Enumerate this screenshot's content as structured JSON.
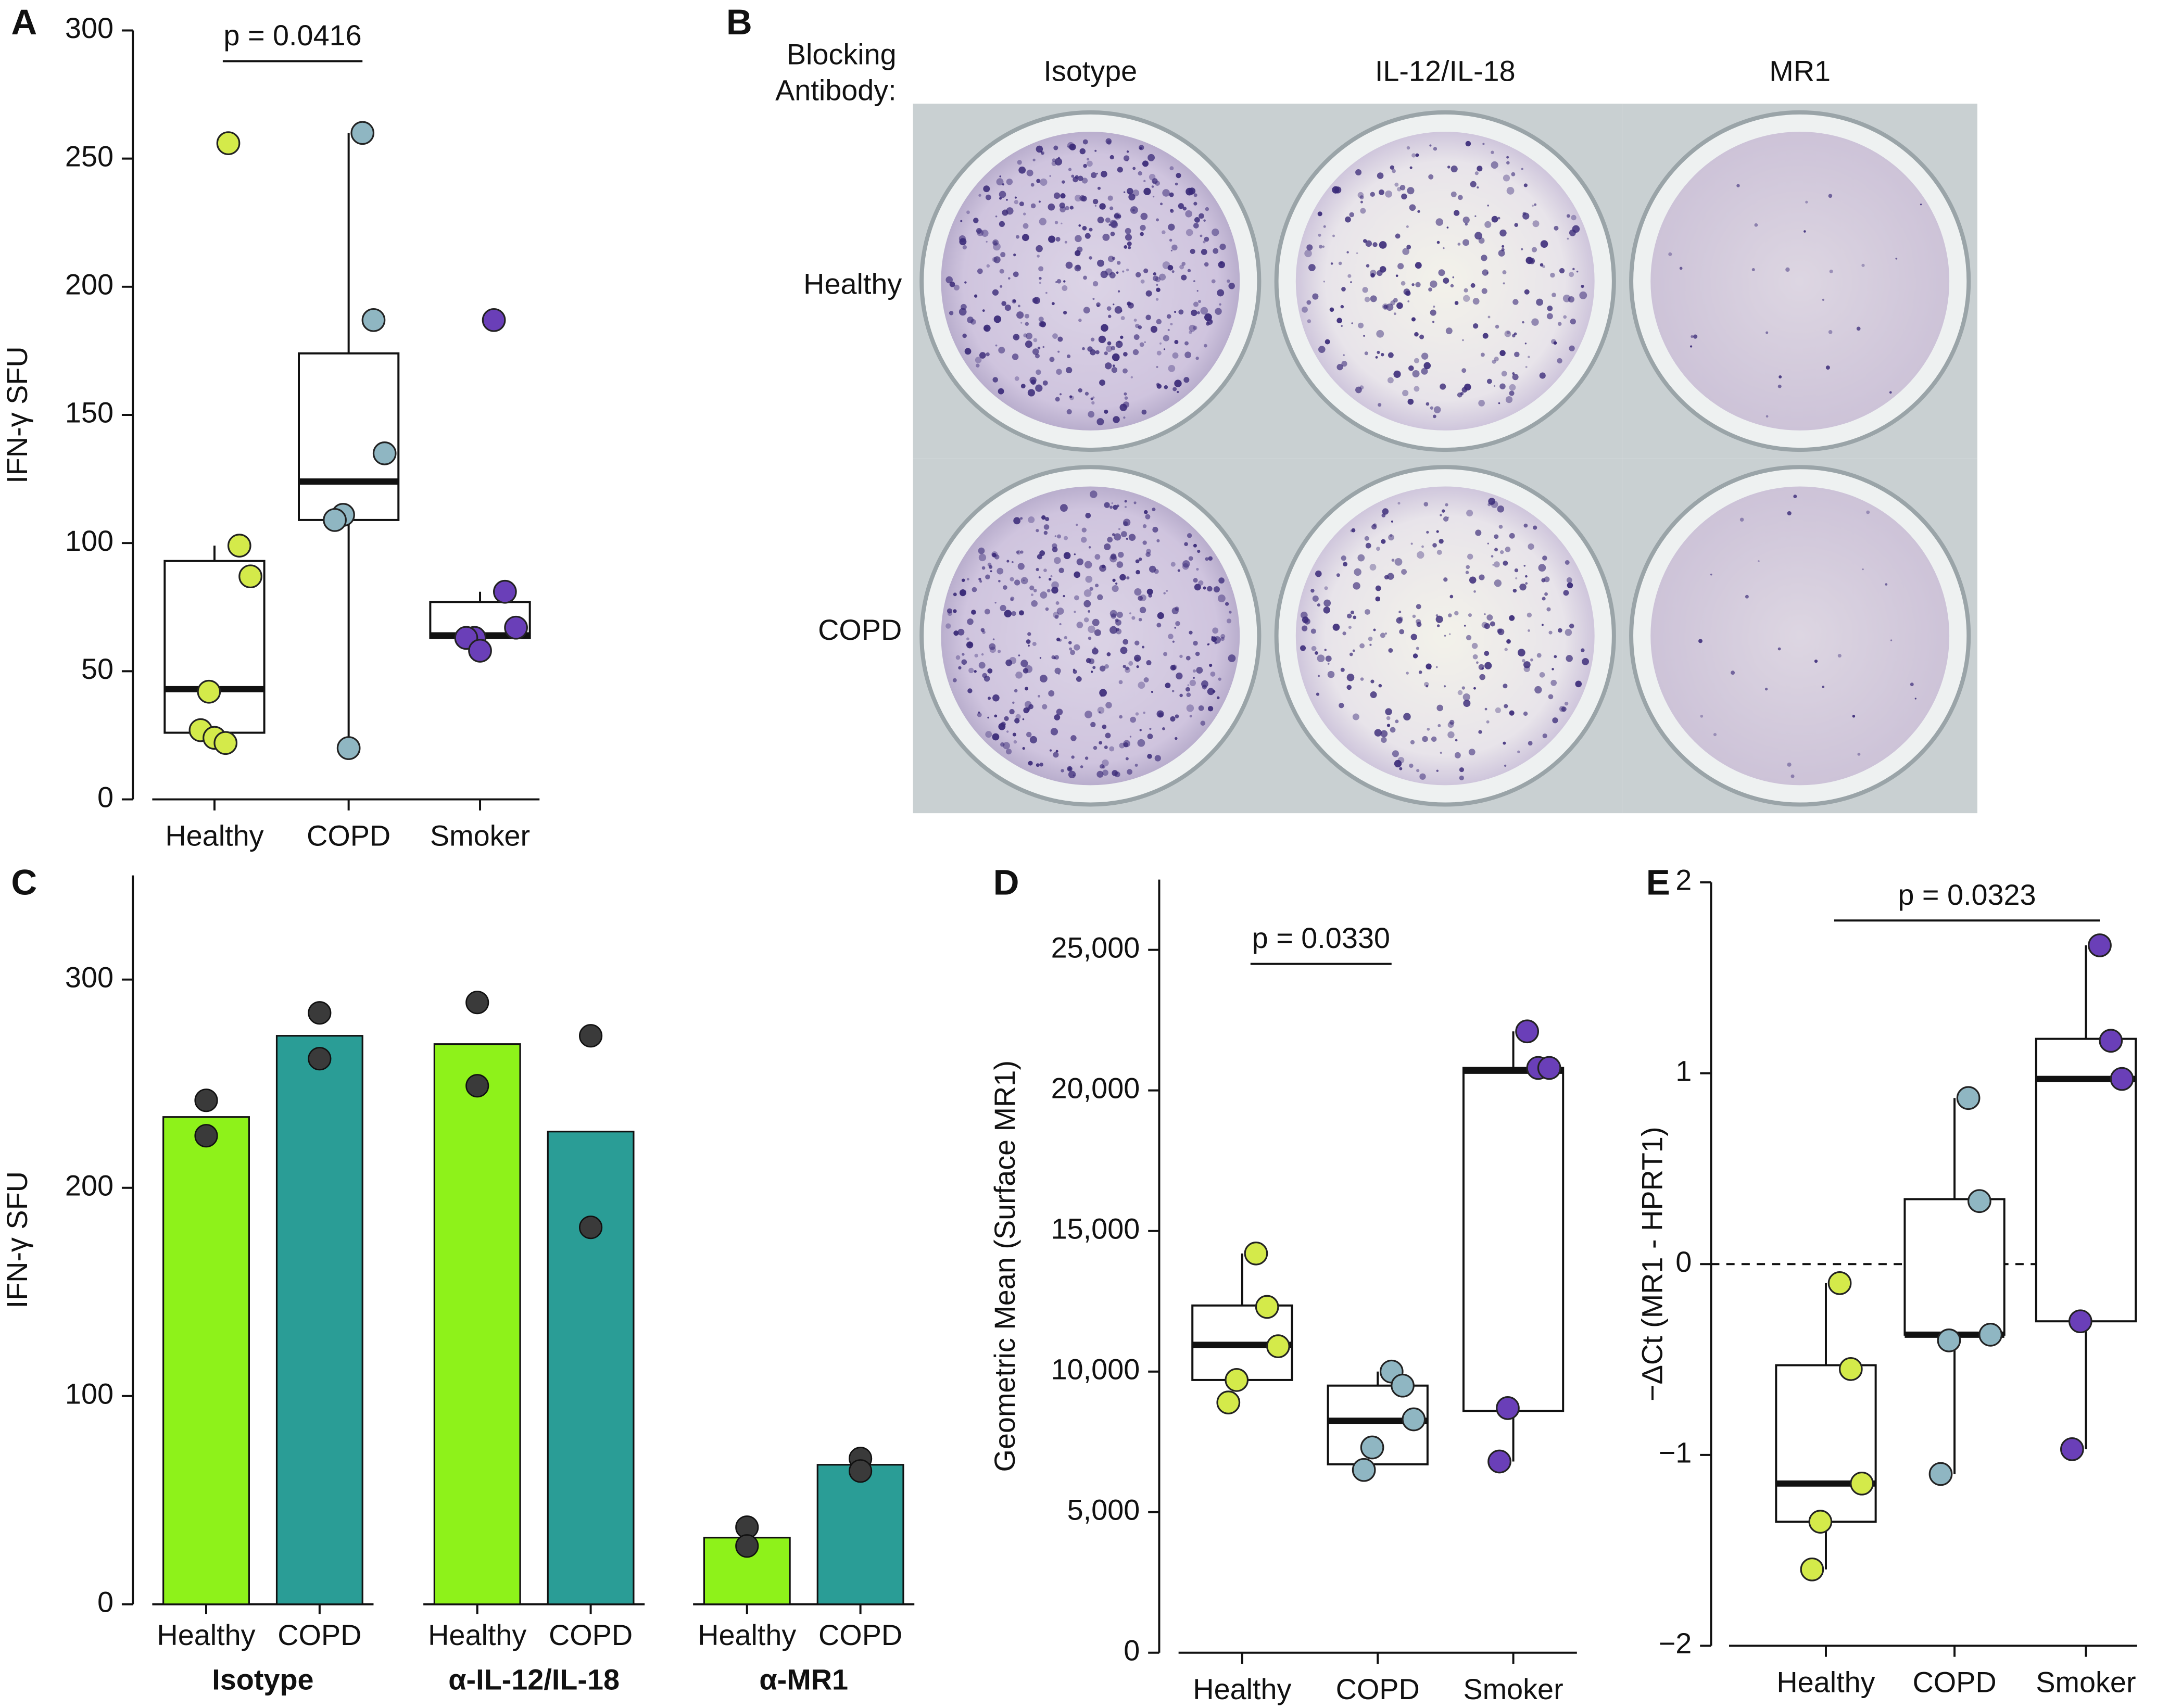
{
  "chart_data": [
    {
      "type": "box",
      "label": "A",
      "ylabel": "IFN-γ SFU",
      "categories": [
        "Healthy",
        "COPD",
        "Smoker"
      ],
      "colors": [
        "#d4ea4a",
        "#8fb6c2",
        "#6a3fb8"
      ],
      "ylim": [
        0,
        300
      ],
      "yticks": [
        0,
        50,
        100,
        150,
        200,
        250,
        300
      ],
      "boxes": [
        {
          "whislo": 26,
          "q1": 26,
          "med": 43,
          "q3": 93,
          "whishi": 99
        },
        {
          "whislo": 20,
          "q1": 109,
          "med": 124,
          "q3": 174,
          "whishi": 260
        },
        {
          "whislo": 63,
          "q1": 63,
          "med": 64,
          "q3": 77,
          "whishi": 81
        }
      ],
      "points": [
        [
          256,
          99,
          87,
          42,
          27,
          24,
          22
        ],
        [
          260,
          187,
          135,
          111,
          109,
          20
        ],
        [
          187,
          81,
          67,
          63,
          63,
          58
        ]
      ],
      "annotations": [
        {
          "text": "p = 0.0416",
          "y": 288,
          "between": [
            "Healthy",
            "COPD"
          ]
        }
      ]
    },
    {
      "type": "bar",
      "label": "C",
      "ylabel": "IFN-γ SFU",
      "categories": [
        "Isotype",
        "α-IL-12/IL-18",
        "α-MR1"
      ],
      "series": [
        {
          "name": "Healthy",
          "color": "#8ef21a",
          "values": [
            234,
            269,
            32
          ],
          "points": [
            [
              242,
              225
            ],
            [
              289,
              249
            ],
            [
              37,
              28
            ]
          ]
        },
        {
          "name": "COPD",
          "color": "#2a9d96",
          "values": [
            273,
            227,
            67
          ],
          "points": [
            [
              284,
              262
            ],
            [
              273,
              181
            ],
            [
              70,
              64
            ]
          ]
        }
      ],
      "ylim": [
        0,
        350
      ],
      "yticks": [
        0,
        100,
        200,
        300
      ]
    },
    {
      "type": "box",
      "label": "D",
      "ylabel": "Geometric Mean (Surface MR1)",
      "categories": [
        "Healthy",
        "COPD",
        "Smoker"
      ],
      "colors": [
        "#d4ea4a",
        "#8fb6c2",
        "#6a3fb8"
      ],
      "ylim": [
        0,
        27500
      ],
      "yticks": [
        0,
        {
          "value": 5000,
          "label": "5,000"
        },
        {
          "value": 10000,
          "label": "10,000"
        },
        {
          "value": 15000,
          "label": "15,000"
        },
        {
          "value": 20000,
          "label": "20,000"
        },
        {
          "value": 25000,
          "label": "25,000"
        }
      ],
      "boxes": [
        {
          "whislo": 9700,
          "q1": 9700,
          "med": 10950,
          "q3": 12350,
          "whishi": 14200
        },
        {
          "whislo": 6700,
          "q1": 6700,
          "med": 8250,
          "q3": 9500,
          "whishi": 10000
        },
        {
          "whislo": 6800,
          "q1": 8600,
          "med": 20700,
          "q3": 20800,
          "whishi": 22100
        }
      ],
      "points": [
        [
          14200,
          12300,
          10900,
          9700,
          8900
        ],
        [
          10000,
          9500,
          8300,
          7300,
          6500
        ],
        [
          22100,
          20800,
          20800,
          8700,
          6800
        ]
      ],
      "annotations": [
        {
          "text": "p = 0.0330",
          "y": 24500,
          "between": [
            "Healthy",
            "COPD"
          ]
        }
      ]
    },
    {
      "type": "box",
      "label": "E",
      "ylabel": "−ΔCt (MR1 - HPRT1)",
      "categories": [
        "Healthy",
        "COPD",
        "Smoker"
      ],
      "colors": [
        "#d4ea4a",
        "#8fb6c2",
        "#6a3fb8"
      ],
      "ylim": [
        -2,
        2
      ],
      "yticks": [
        {
          "value": -2,
          "label": "−2"
        },
        {
          "value": -1,
          "label": "−1"
        },
        0,
        1,
        2
      ],
      "hline": 0,
      "boxes": [
        {
          "whislo": -1.6,
          "q1": -1.35,
          "med": -1.15,
          "q3": -0.53,
          "whishi": -0.1
        },
        {
          "whislo": -1.1,
          "q1": -0.37,
          "med": -0.37,
          "q3": 0.34,
          "whishi": 0.87
        },
        {
          "whislo": -0.97,
          "q1": -0.3,
          "med": 0.97,
          "q3": 1.18,
          "whishi": 1.67
        }
      ],
      "points": [
        [
          -0.1,
          -0.55,
          -1.15,
          -1.35,
          -1.6
        ],
        [
          0.87,
          0.33,
          -0.37,
          -0.4,
          -1.1
        ],
        [
          1.67,
          1.17,
          0.97,
          -0.3,
          -0.97
        ]
      ],
      "annotations": [
        {
          "text": "p = 0.0323",
          "y": 1.8,
          "between": [
            "Healthy",
            "Smoker"
          ]
        }
      ]
    }
  ],
  "image_panel": {
    "label": "B",
    "corner_label": [
      "Blocking",
      "Antibody:"
    ],
    "columns": [
      "Isotype",
      "IL-12/IL-18",
      "MR1"
    ],
    "rows": [
      "Healthy",
      "COPD"
    ]
  }
}
